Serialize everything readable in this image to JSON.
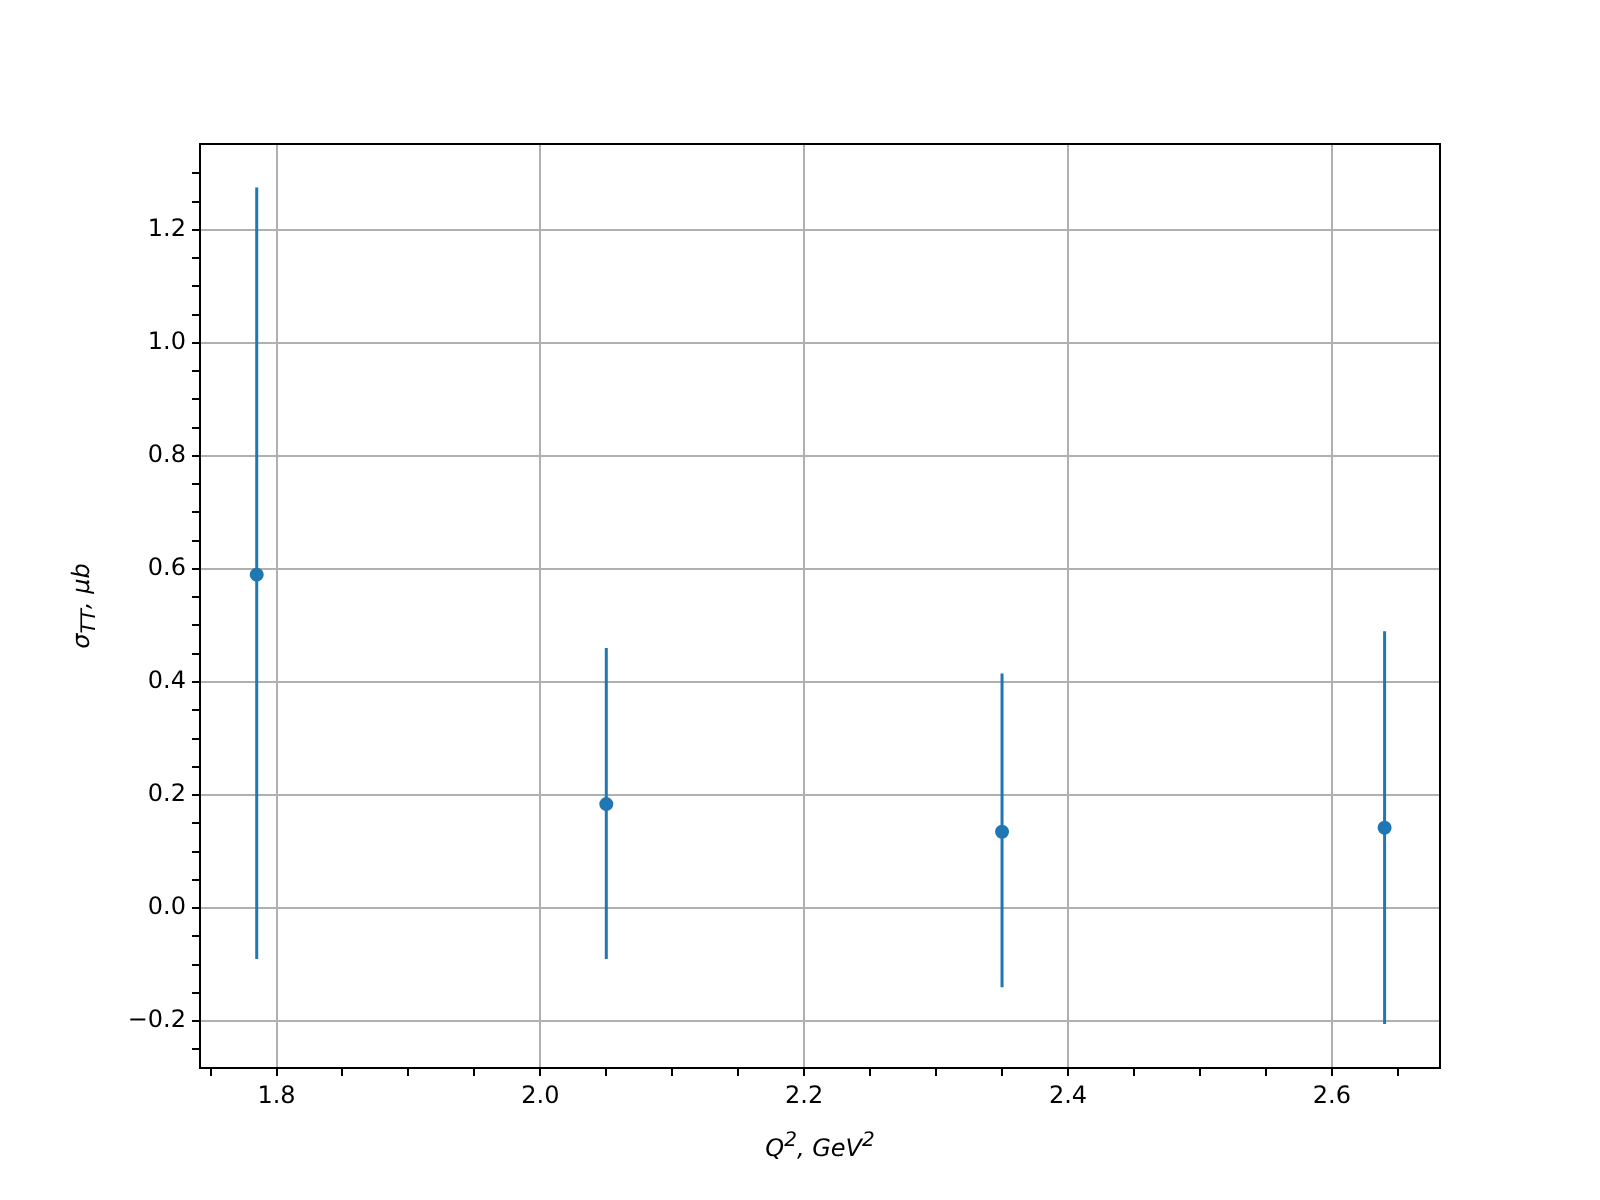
{
  "chart_data": {
    "type": "scatter",
    "xlabel": "Q$^{2}$, GeV$^{2}$",
    "ylabel": "σ$_{TT}$, μb",
    "x": [
      1.785,
      2.05,
      2.35,
      2.64
    ],
    "series": [
      {
        "color": "#1f77b4",
        "values": [
          0.59,
          0.184,
          0.135,
          0.142
        ],
        "errors": [
          [
            -0.09,
            1.275
          ],
          [
            -0.09,
            0.46
          ],
          [
            -0.14,
            0.415
          ],
          [
            -0.205,
            0.49
          ]
        ]
      }
    ],
    "xlim": [
      1.742,
      2.682
    ],
    "ylim": [
      -0.283,
      1.352
    ],
    "xticks": [
      {
        "value": 1.75,
        "label": null
      },
      1.8,
      {
        "value": 1.85,
        "label": null
      },
      {
        "value": 1.9,
        "label": null
      },
      {
        "value": 1.95,
        "label": null
      },
      {
        "value": 2.0,
        "label": "2.0"
      },
      {
        "value": 2.05,
        "label": null
      },
      {
        "value": 2.1,
        "label": null
      },
      {
        "value": 2.15,
        "label": null
      },
      2.2,
      {
        "value": 2.25,
        "label": null
      },
      {
        "value": 2.3,
        "label": null
      },
      {
        "value": 2.35,
        "label": null
      },
      2.4,
      {
        "value": 2.45,
        "label": null
      },
      {
        "value": 2.5,
        "label": null
      },
      {
        "value": 2.55,
        "label": null
      },
      2.6,
      {
        "value": 2.65,
        "label": null
      }
    ],
    "yticks": [
      {
        "value": -0.25,
        "label": null
      },
      {
        "value": -0.2,
        "label": "−0.2"
      },
      {
        "value": -0.15,
        "label": null
      },
      {
        "value": -0.1,
        "label": null
      },
      {
        "value": -0.05,
        "label": null
      },
      {
        "value": 0,
        "label": "0.0"
      },
      {
        "value": 0.05,
        "label": null
      },
      {
        "value": 0.1,
        "label": null
      },
      {
        "value": 0.15,
        "label": null
      },
      0.2,
      {
        "value": 0.25,
        "label": null
      },
      {
        "value": 0.3,
        "label": null
      },
      {
        "value": 0.35,
        "label": null
      },
      0.4,
      {
        "value": 0.45,
        "label": null
      },
      {
        "value": 0.5,
        "label": null
      },
      {
        "value": 0.55,
        "label": null
      },
      0.6,
      {
        "value": 0.65,
        "label": null
      },
      {
        "value": 0.7,
        "label": null
      },
      {
        "value": 0.75,
        "label": null
      },
      0.8,
      {
        "value": 0.85,
        "label": null
      },
      {
        "value": 0.9,
        "label": null
      },
      {
        "value": 0.95,
        "label": null
      },
      {
        "value": 1.0,
        "label": "1.0"
      },
      {
        "value": 1.05,
        "label": null
      },
      {
        "value": 1.1,
        "label": null
      },
      {
        "value": 1.15,
        "label": null
      },
      1.2,
      {
        "value": 1.25,
        "label": null
      },
      {
        "value": 1.3,
        "label": null
      }
    ],
    "grid": true,
    "marker": "circle"
  }
}
